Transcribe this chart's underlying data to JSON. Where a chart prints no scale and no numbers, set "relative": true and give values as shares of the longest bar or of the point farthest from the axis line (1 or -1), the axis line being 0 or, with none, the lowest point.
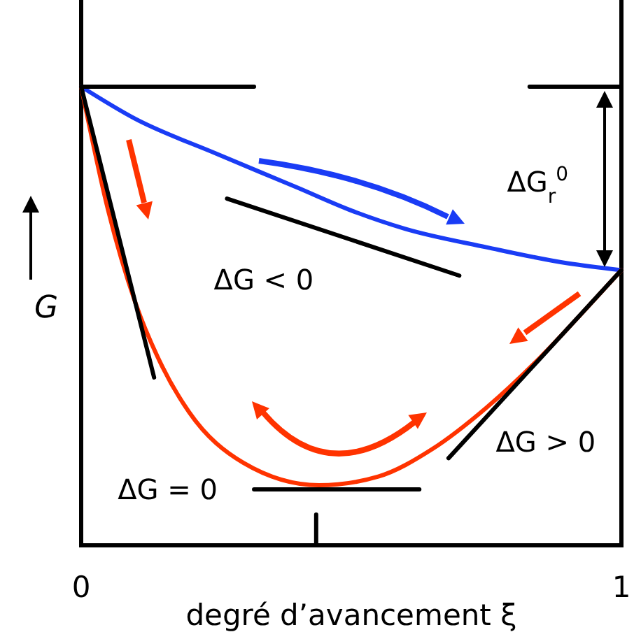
{
  "chart_data": {
    "type": "line",
    "relative": true,
    "xlabel": "degré d’avancement ξ",
    "ylabel": "G",
    "xlim": [
      0,
      1
    ],
    "xticks": [
      0,
      1
    ],
    "ref_lines": [
      {
        "axis": "x",
        "value": 1,
        "color": "#000000"
      }
    ],
    "marker": "none",
    "line_style": "solid",
    "series": [
      {
        "color": "#1a3cf5",
        "x": [
          0,
          0.1,
          0.25,
          0.4,
          0.5,
          0.6,
          0.75,
          0.9,
          1
        ],
        "values": [
          1,
          0.93,
          0.854,
          0.78,
          0.73,
          0.69,
          0.65,
          0.615,
          0.6
        ]
      },
      {
        "color": "#ff3300",
        "x": [
          0,
          0.05,
          0.1,
          0.15,
          0.2,
          0.3,
          0.44,
          0.55,
          0.65,
          0.75,
          0.85,
          0.93,
          1
        ],
        "values": [
          1,
          0.73,
          0.53,
          0.39,
          0.29,
          0.18,
          0.131,
          0.15,
          0.21,
          0.3,
          0.41,
          0.51,
          0.6
        ]
      },
      {
        "color": "#000000",
        "x": [
          0,
          0.135
        ],
        "values": [
          1,
          0.366
        ]
      },
      {
        "color": "#000000",
        "x": [
          0.27,
          0.7
        ],
        "values": [
          0.756,
          0.588
        ]
      },
      {
        "color": "#000000",
        "x": [
          0.32,
          0.626
        ],
        "values": [
          0.122,
          0.122
        ]
      },
      {
        "color": "#000000",
        "x": [
          0.68,
          1
        ],
        "values": [
          0.19,
          0.6
        ]
      },
      {
        "color": "#000000",
        "x": [
          0,
          0.32
        ],
        "values": [
          1,
          1
        ]
      },
      {
        "color": "#000000",
        "x": [
          0.83,
          1
        ],
        "values": [
          1,
          1
        ]
      },
      {
        "color": "#000000",
        "x": [
          0.435,
          0.435
        ],
        "values": [
          0,
          0.067
        ]
      }
    ],
    "annotations": [
      "ΔG < 0",
      "ΔG > 0",
      "ΔG = 0",
      "ΔG$_{r}$$^{0}$"
    ]
  }
}
